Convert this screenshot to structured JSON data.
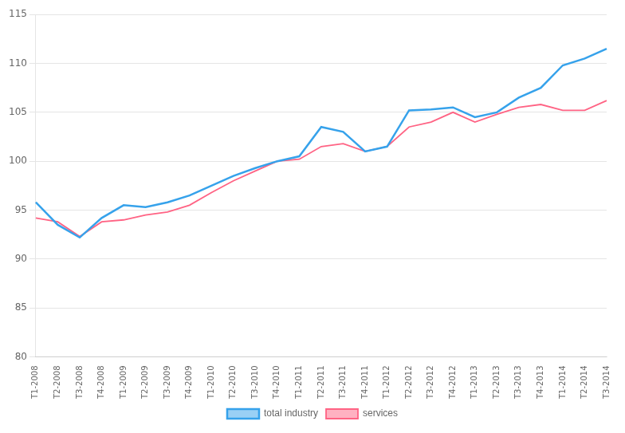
{
  "chart_data": {
    "type": "line",
    "categories": [
      "T1-2008",
      "T2-2008",
      "T3-2008",
      "T4-2008",
      "T1-2009",
      "T2-2009",
      "T3-2009",
      "T4-2009",
      "T1-2010",
      "T2-2010",
      "T3-2010",
      "T4-2010",
      "T1-2011",
      "T2-2011",
      "T3-2011",
      "T4-2011",
      "T1-2012",
      "T2-2012",
      "T3-2012",
      "T4-2012",
      "T1-2013",
      "T2-2013",
      "T3-2013",
      "T4-2013",
      "T1-2014",
      "T2-2014",
      "T3-2014"
    ],
    "series": [
      {
        "name": "total industry",
        "values": [
          95.8,
          93.5,
          92.2,
          94.2,
          95.5,
          95.3,
          95.8,
          96.5,
          97.5,
          98.5,
          99.3,
          100.0,
          100.5,
          103.5,
          103.0,
          101.0,
          101.5,
          105.2,
          105.3,
          105.5,
          104.5,
          105.0,
          106.5,
          107.5,
          109.8,
          110.5,
          111.5
        ]
      },
      {
        "name": "services",
        "values": [
          94.2,
          93.8,
          92.3,
          93.8,
          94.0,
          94.5,
          94.8,
          95.5,
          96.8,
          98.0,
          99.0,
          100.0,
          100.2,
          101.5,
          101.8,
          101.0,
          101.5,
          103.5,
          104.0,
          105.0,
          104.0,
          104.8,
          105.5,
          105.8,
          105.2,
          105.2,
          106.2
        ]
      }
    ],
    "ylim": [
      80,
      115
    ],
    "yticks": [
      80,
      85,
      90,
      95,
      100,
      105,
      110,
      115
    ],
    "grid": true,
    "legend": "bottom"
  }
}
